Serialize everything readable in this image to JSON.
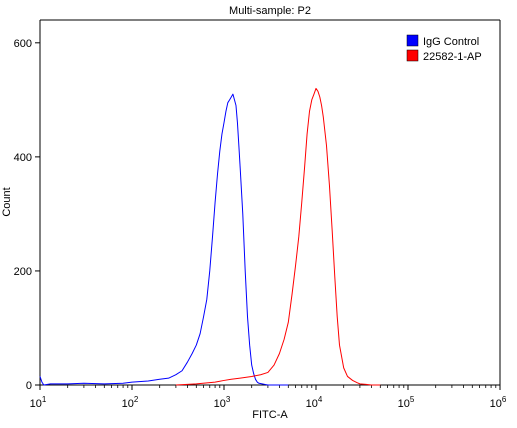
{
  "chart_data": {
    "type": "line",
    "title": "Multi-sample: P2",
    "xlabel": "FITC-A",
    "ylabel": "Count",
    "x_scale": "log",
    "xlim": [
      10,
      1000000
    ],
    "ylim": [
      0,
      640
    ],
    "x_ticks": [
      10,
      100,
      1000,
      10000,
      100000,
      1000000
    ],
    "x_tick_labels": [
      {
        "base": "10",
        "exp": "1"
      },
      {
        "base": "10",
        "exp": "2"
      },
      {
        "base": "10",
        "exp": "3"
      },
      {
        "base": "10",
        "exp": "4"
      },
      {
        "base": "10",
        "exp": "5"
      },
      {
        "base": "10",
        "exp": "6"
      }
    ],
    "y_ticks": [
      0,
      200,
      400,
      600
    ],
    "y_tick_labels": [
      "0",
      "200",
      "400",
      "600"
    ],
    "grid": false,
    "legend_position": "top-right",
    "series": [
      {
        "name": "IgG Control",
        "color": "#0000ff",
        "x": [
          10,
          10.5,
          11,
          13,
          20,
          30,
          50,
          80,
          100,
          150,
          200,
          250,
          300,
          350,
          400,
          450,
          500,
          550,
          600,
          650,
          700,
          750,
          800,
          850,
          900,
          950,
          1000,
          1050,
          1100,
          1150,
          1200,
          1250,
          1300,
          1350,
          1400,
          1450,
          1500,
          1600,
          1700,
          1800,
          1900,
          2000,
          2100,
          2200,
          2300,
          2400,
          2600,
          2800,
          3000,
          3500,
          4000,
          5000
        ],
        "y": [
          15,
          5,
          0,
          2,
          2,
          3,
          2,
          3,
          5,
          7,
          10,
          12,
          18,
          25,
          40,
          55,
          70,
          90,
          120,
          150,
          200,
          260,
          320,
          370,
          410,
          440,
          460,
          480,
          495,
          500,
          505,
          510,
          500,
          490,
          460,
          420,
          380,
          300,
          200,
          120,
          70,
          35,
          20,
          10,
          5,
          3,
          2,
          1,
          0,
          0,
          0,
          0
        ]
      },
      {
        "name": "22582-1-AP",
        "color": "#ff0000",
        "x": [
          300,
          500,
          800,
          1000,
          1200,
          1500,
          2000,
          2500,
          3000,
          3500,
          4000,
          4500,
          5000,
          5500,
          6000,
          6500,
          7000,
          7500,
          8000,
          8500,
          9000,
          9500,
          10000,
          10500,
          11000,
          11500,
          12000,
          13000,
          14000,
          15000,
          16000,
          17000,
          18000,
          20000,
          22000,
          25000,
          28000,
          30000,
          35000,
          40000,
          50000
        ],
        "y": [
          0,
          2,
          5,
          8,
          10,
          12,
          15,
          18,
          22,
          35,
          55,
          80,
          110,
          160,
          210,
          260,
          320,
          380,
          440,
          480,
          500,
          510,
          520,
          515,
          505,
          490,
          470,
          420,
          350,
          270,
          190,
          120,
          70,
          30,
          15,
          8,
          4,
          2,
          1,
          0,
          0
        ]
      }
    ]
  }
}
